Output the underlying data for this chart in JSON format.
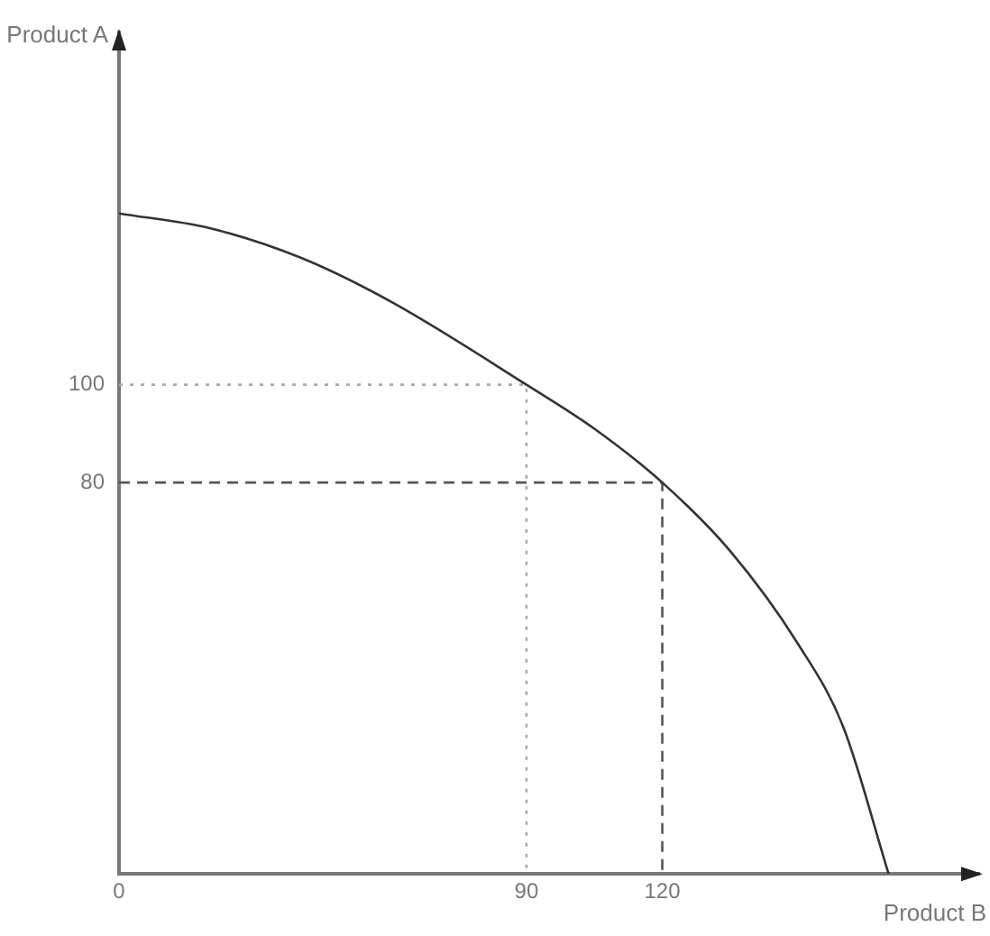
{
  "chart_data": {
    "type": "line",
    "xlabel": "Product B",
    "ylabel": "Product A",
    "xlim": [
      0,
      190
    ],
    "ylim": [
      0,
      172
    ],
    "xticks": [
      0,
      90,
      120
    ],
    "yticks": [
      80,
      100
    ],
    "grid": false,
    "legend": false,
    "marker": "none",
    "series": [
      {
        "color": "#333333",
        "x": [
          0,
          20,
          40,
          60,
          90,
          105,
          120,
          135,
          150,
          160,
          170
        ],
        "values": [
          135,
          132,
          126,
          117,
          100,
          91,
          80,
          66,
          47,
          30,
          0
        ]
      },
      {
        "color": "#aaaaaa",
        "line_style": "dotted",
        "x": [
          0,
          90,
          90
        ],
        "values": [
          100,
          100,
          0
        ]
      },
      {
        "color": "#555555",
        "line_style": "dashed",
        "x": [
          0,
          120,
          120
        ],
        "values": [
          80,
          80,
          0
        ]
      }
    ]
  }
}
